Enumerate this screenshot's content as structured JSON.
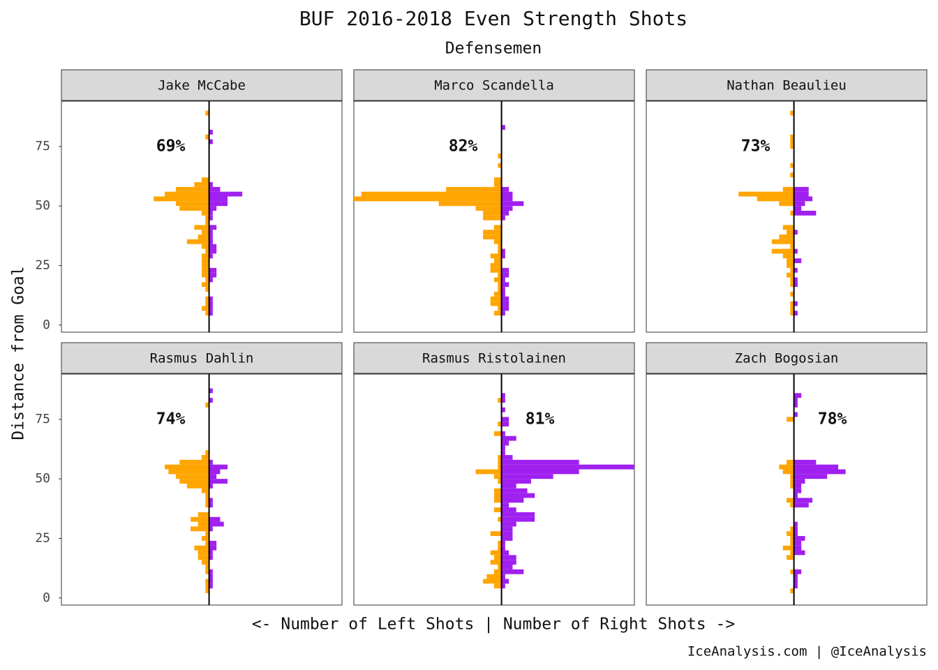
{
  "chart_data": {
    "type": "mirrored-bar",
    "title": "BUF 2016-2018 Even Strength Shots",
    "subtitle": "Defensemen",
    "y_label": "Distance from Goal",
    "x_label": "<- Number of Left Shots | Number of Right Shots ->",
    "caption": "IceAnalysis.com | @IceAnalysis",
    "left_color": "#ffa500",
    "right_color": "#a020f0",
    "xlim": [
      -40,
      36
    ],
    "ylim": [
      -3,
      94
    ],
    "yticks": [
      0,
      25,
      50,
      75
    ],
    "bins": [
      0,
      2,
      4,
      6,
      8,
      10,
      12,
      14,
      16,
      18,
      20,
      22,
      24,
      26,
      28,
      30,
      32,
      34,
      36,
      38,
      40,
      42,
      44,
      46,
      48,
      50,
      52,
      54,
      56,
      58,
      60,
      62,
      64,
      66,
      68,
      70,
      72,
      74,
      76,
      78,
      80,
      82,
      84,
      86,
      88,
      90
    ],
    "facets": [
      {
        "title": "Jake McCabe",
        "value": 69,
        "value_label": "69%",
        "left_values": [
          0,
          0,
          1,
          2,
          1,
          1,
          0,
          1,
          2,
          1,
          2,
          2,
          2,
          2,
          2,
          1,
          2,
          6,
          3,
          2,
          4,
          1,
          1,
          2,
          8,
          9,
          15,
          12,
          9,
          4,
          2,
          0,
          0,
          0,
          0,
          0,
          0,
          0,
          0,
          1,
          0,
          0,
          0,
          0,
          1
        ],
        "right_values": [
          0,
          0,
          1,
          1,
          1,
          1,
          0,
          0,
          0,
          1,
          2,
          2,
          0,
          0,
          1,
          2,
          2,
          1,
          1,
          1,
          2,
          0,
          1,
          1,
          2,
          5,
          5,
          9,
          3,
          1,
          0,
          0,
          0,
          0,
          0,
          0,
          0,
          0,
          1,
          0,
          1,
          0,
          0,
          0,
          0
        ]
      },
      {
        "title": "Marco Scandella",
        "value": 82,
        "value_label": "82%",
        "left_values": [
          0,
          0,
          2,
          1,
          3,
          3,
          2,
          1,
          1,
          2,
          1,
          3,
          3,
          2,
          3,
          1,
          1,
          2,
          5,
          5,
          2,
          0,
          5,
          5,
          7,
          17,
          40,
          38,
          15,
          2,
          2,
          0,
          0,
          1,
          0,
          1,
          0,
          0,
          0,
          0,
          0,
          0,
          0,
          0,
          0
        ],
        "right_values": [
          0,
          0,
          1,
          2,
          2,
          2,
          1,
          1,
          2,
          1,
          2,
          2,
          0,
          0,
          1,
          1,
          0,
          0,
          0,
          0,
          0,
          0,
          1,
          2,
          3,
          6,
          3,
          3,
          2,
          0,
          0,
          0,
          0,
          0,
          0,
          0,
          0,
          0,
          0,
          0,
          0,
          1,
          0,
          0,
          0
        ]
      },
      {
        "title": "Nathan Beaulieu",
        "value": 73,
        "value_label": "73%",
        "left_values": [
          0,
          0,
          1,
          1,
          1,
          0,
          1,
          0,
          1,
          1,
          2,
          1,
          2,
          2,
          3,
          6,
          1,
          6,
          4,
          2,
          3,
          0,
          0,
          1,
          0,
          4,
          10,
          15,
          3,
          0,
          0,
          1,
          0,
          1,
          0,
          0,
          0,
          1,
          1,
          1,
          0,
          0,
          0,
          0,
          1
        ],
        "right_values": [
          0,
          0,
          1,
          0,
          1,
          0,
          0,
          0,
          1,
          1,
          0,
          1,
          0,
          2,
          0,
          1,
          0,
          0,
          0,
          1,
          0,
          0,
          0,
          6,
          2,
          3,
          5,
          4,
          4,
          0,
          0,
          0,
          0,
          0,
          0,
          0,
          0,
          0,
          0,
          0,
          0,
          0,
          0,
          0,
          0
        ]
      },
      {
        "title": "Rasmus Dahlin",
        "value": 74,
        "value_label": "74%",
        "left_values": [
          0,
          1,
          1,
          1,
          0,
          1,
          1,
          2,
          3,
          3,
          4,
          1,
          2,
          1,
          5,
          3,
          5,
          3,
          0,
          1,
          1,
          1,
          2,
          6,
          8,
          9,
          11,
          12,
          8,
          2,
          1,
          0,
          0,
          0,
          0,
          0,
          0,
          0,
          0,
          0,
          1,
          0,
          0,
          0,
          0
        ],
        "right_values": [
          0,
          0,
          1,
          1,
          1,
          1,
          0,
          0,
          1,
          1,
          2,
          2,
          0,
          0,
          1,
          4,
          3,
          0,
          0,
          1,
          1,
          0,
          0,
          1,
          5,
          2,
          3,
          5,
          1,
          0,
          0,
          0,
          0,
          0,
          0,
          0,
          0,
          0,
          0,
          0,
          0,
          1,
          0,
          1,
          0
        ]
      },
      {
        "title": "Rasmus Ristolainen",
        "value": 81,
        "value_label": "81%",
        "left_values": [
          0,
          0,
          2,
          5,
          4,
          2,
          1,
          3,
          2,
          3,
          1,
          1,
          0,
          3,
          0,
          0,
          1,
          0,
          2,
          0,
          2,
          2,
          2,
          0,
          1,
          2,
          7,
          1,
          1,
          1,
          0,
          0,
          0,
          0,
          2,
          0,
          1,
          0,
          0,
          0,
          0,
          1,
          0,
          0,
          0
        ],
        "right_values": [
          0,
          0,
          1,
          2,
          1,
          6,
          3,
          4,
          4,
          2,
          1,
          1,
          3,
          3,
          3,
          4,
          9,
          9,
          4,
          2,
          6,
          9,
          7,
          4,
          8,
          14,
          21,
          36,
          21,
          3,
          1,
          1,
          2,
          4,
          1,
          0,
          2,
          2,
          0,
          1,
          0,
          1,
          1,
          0,
          0
        ]
      },
      {
        "title": "Zach Bogosian",
        "value": 78,
        "value_label": "78%",
        "left_values": [
          0,
          1,
          0,
          0,
          0,
          1,
          0,
          0,
          2,
          1,
          3,
          1,
          1,
          2,
          1,
          0,
          0,
          0,
          0,
          1,
          2,
          0,
          0,
          1,
          1,
          1,
          3,
          4,
          2,
          0,
          0,
          0,
          0,
          0,
          0,
          0,
          0,
          2,
          0,
          0,
          0,
          0,
          0,
          0,
          0
        ],
        "right_values": [
          0,
          0,
          1,
          1,
          1,
          2,
          0,
          0,
          0,
          3,
          2,
          2,
          3,
          1,
          1,
          1,
          0,
          0,
          0,
          4,
          5,
          1,
          2,
          2,
          3,
          9,
          14,
          12,
          6,
          0,
          0,
          0,
          0,
          0,
          0,
          0,
          0,
          0,
          1,
          0,
          1,
          1,
          2,
          0,
          0
        ]
      }
    ]
  }
}
